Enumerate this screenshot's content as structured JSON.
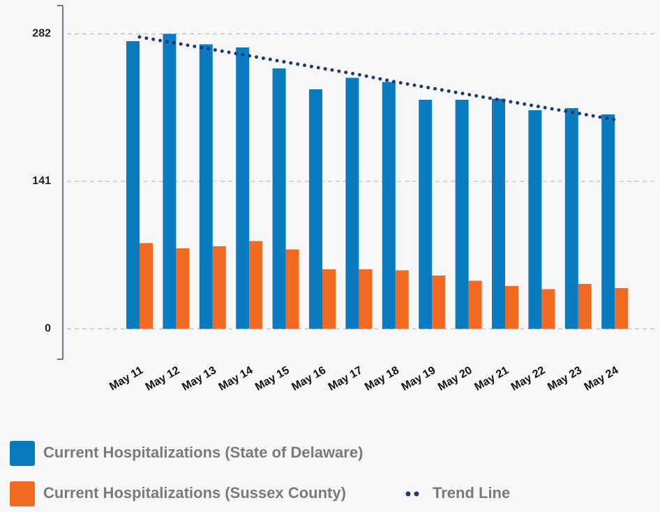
{
  "chart_data": {
    "type": "bar",
    "categories": [
      "May 11",
      "May 12",
      "May 13",
      "May 14",
      "May 15",
      "May 16",
      "May 17",
      "May 18",
      "May 19",
      "May 20",
      "May 21",
      "May 22",
      "May 23",
      "May 24"
    ],
    "series": [
      {
        "name": "Current Hospitalizations (State of Delaware)",
        "color": "#0a7bbf",
        "values": [
          275,
          282,
          272,
          269,
          249,
          229,
          240,
          236,
          219,
          219,
          220,
          209,
          211,
          205
        ]
      },
      {
        "name": "Current Hospitalizations (Sussex County)",
        "color": "#f26a21",
        "values": [
          82,
          77,
          79,
          84,
          76,
          57,
          57,
          56,
          51,
          46,
          41,
          38,
          43,
          39
        ]
      },
      {
        "name": "Trend Line",
        "color": "#1f3a6b",
        "type": "line",
        "values": [
          279,
          273,
          267,
          261,
          255,
          249,
          243,
          236,
          230,
          224,
          218,
          212,
          206,
          200
        ]
      }
    ],
    "ylim": [
      -29,
      309
    ],
    "yticks": [
      0,
      141,
      282
    ],
    "grid": true
  }
}
